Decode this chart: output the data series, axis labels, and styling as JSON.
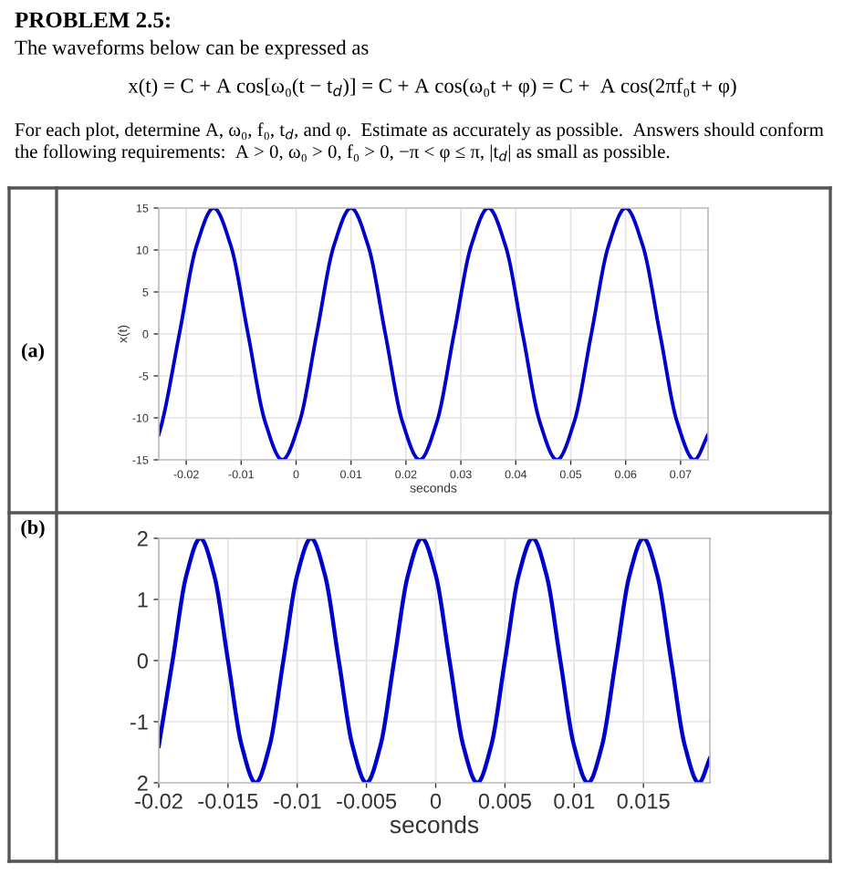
{
  "chart_data": [
    {
      "type": "line",
      "title": "PROBLEM 2.5:",
      "annotations": [
        "The waveforms below can be expressed as",
        "x(t) = C + A cos[ω₀(t − t$_{d}$)] = C + A cos(ω₀t + φ) = C +  A cos(2πf₀t + φ)",
        "For each plot, determine A, ω₀, f₀, t$_{d}$, and φ.  Estimate as accurately as possible.  Answers should conform",
        "the following requirements:  A > 0, ω₀ > 0, f₀ > 0, −π < φ ≤ π, |t$_{d}$| as small as possible.",
        "(a)"
      ],
      "xlabel": "seconds",
      "ylabel": "x(t)",
      "x": [
        -0.025,
        -0.024375,
        -0.02125,
        -0.018125,
        -0.015,
        -0.011875,
        -0.00875,
        -0.005625,
        -0.0025,
        0.000625,
        0.00375,
        0.006875,
        0.01,
        0.013125,
        0.01625,
        0.019375,
        0.0225,
        0.025625,
        0.02875,
        0.031875,
        0.035,
        0.038125,
        0.04125,
        0.044375,
        0.0475,
        0.050625,
        0.05375,
        0.056875,
        0.06,
        0.063125,
        0.06625,
        0.069375,
        0.0725,
        0.075
      ],
      "series": [
        {
          "color": "#0000cd",
          "values": [
            -12,
            -10.5,
            0,
            10.5,
            15,
            10.5,
            0,
            -10.5,
            -15,
            -10.5,
            0,
            10.5,
            15,
            10.5,
            0,
            -10.5,
            -15,
            -10.5,
            0,
            10.5,
            15,
            10.5,
            0,
            -10.5,
            -15,
            -10.5,
            0,
            10.5,
            15,
            10.5,
            0,
            -10.5,
            -15,
            -12
          ]
        }
      ],
      "xlim": [
        -0.025,
        0.075
      ],
      "ylim": [
        -15,
        15
      ],
      "xticks": [
        -0.02,
        -0.01,
        0,
        0.01,
        0.02,
        0.03,
        0.04,
        0.05,
        0.06,
        0.07
      ],
      "yticks": [
        -15,
        -10,
        -5,
        0,
        5,
        10,
        15
      ],
      "grid": true
    },
    {
      "type": "line",
      "annotations": [
        "(b)"
      ],
      "xlabel": "seconds",
      "x": [
        -0.02,
        -0.019,
        -0.018,
        -0.017,
        -0.016,
        -0.015,
        -0.014,
        -0.013,
        -0.012,
        -0.011,
        -0.01,
        -0.009,
        -0.008,
        -0.007,
        -0.006,
        -0.005,
        -0.004,
        -0.003,
        -0.002,
        -0.001,
        0,
        0.001,
        0.002,
        0.003,
        0.004,
        0.005,
        0.006,
        0.007,
        0.008,
        0.009,
        0.01,
        0.011,
        0.012,
        0.013,
        0.014,
        0.015,
        0.016,
        0.017,
        0.018,
        0.019,
        0.0198
      ],
      "series": [
        {
          "color": "#0000cd",
          "values": [
            -1.4,
            0,
            1.4,
            2,
            1.4,
            0,
            -1.4,
            -2,
            -1.4,
            0,
            1.4,
            2,
            1.4,
            0,
            -1.4,
            -2,
            -1.4,
            0,
            1.4,
            2,
            1.4,
            0,
            -1.4,
            -2,
            -1.4,
            0,
            1.4,
            2,
            1.4,
            0,
            -1.4,
            -2,
            -1.4,
            0,
            1.4,
            2,
            1.4,
            0,
            -1.4,
            -2,
            -1.6
          ]
        }
      ],
      "xlim": [
        -0.02,
        0.0198
      ],
      "ylim": [
        -2,
        2
      ],
      "xticks": [
        -0.02,
        -0.015,
        -0.01,
        -0.005,
        0,
        0.005,
        0.01,
        0.015
      ],
      "yticks": [
        {
          "value": -2,
          "label": "2"
        },
        -1,
        0,
        1,
        2
      ],
      "grid": true
    }
  ]
}
